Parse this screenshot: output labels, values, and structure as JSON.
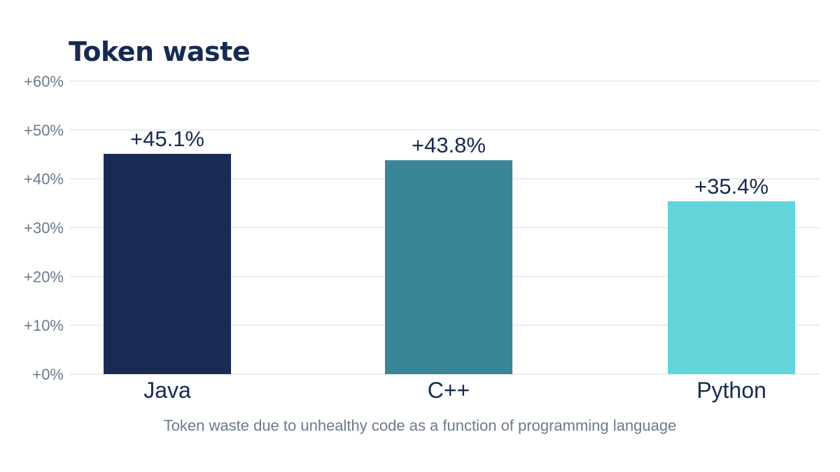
{
  "chart_data": {
    "type": "bar",
    "title": "Token waste",
    "caption": "Token waste due to unhealthy code as a function of programming language",
    "categories": [
      "Java",
      "C++",
      "Python"
    ],
    "values": [
      45.1,
      43.8,
      35.4
    ],
    "value_labels": [
      "+45.1%",
      "+43.8%",
      "+35.4%"
    ],
    "colors": [
      "#192b52",
      "#3a8699",
      "#62d5da"
    ],
    "ylim": [
      0,
      60
    ],
    "yticks": [
      0,
      10,
      20,
      30,
      40,
      50,
      60
    ],
    "ytick_labels": [
      "+0%",
      "+10%",
      "+20%",
      "+30%",
      "+40%",
      "+50%",
      "+60%"
    ],
    "xlabel": "",
    "ylabel": "",
    "grid": true,
    "legend": "none"
  }
}
